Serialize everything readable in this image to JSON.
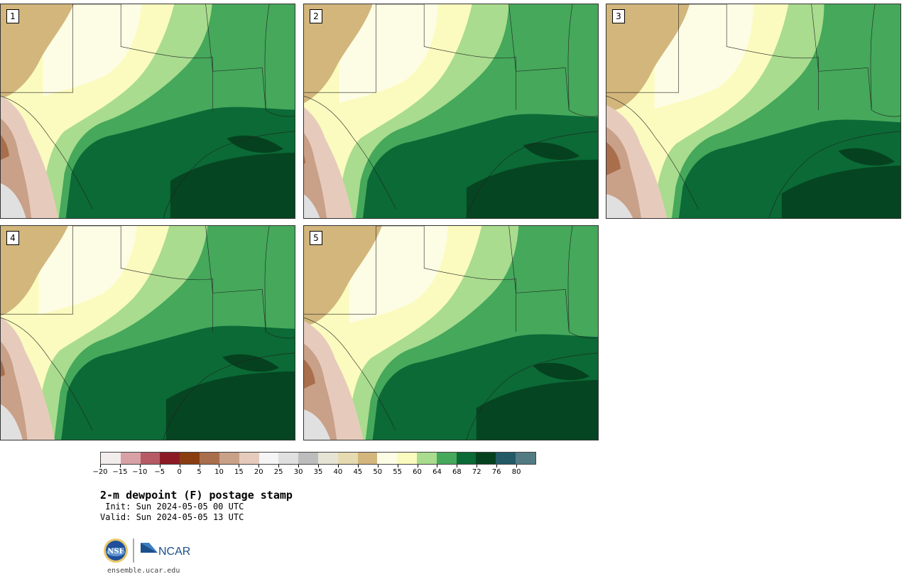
{
  "panels": [
    {
      "label": "1"
    },
    {
      "label": "2"
    },
    {
      "label": "3"
    },
    {
      "label": "4"
    },
    {
      "label": "5"
    }
  ],
  "colorbar": {
    "colors": [
      "#f3ecec",
      "#d7a1a6",
      "#b75a66",
      "#8c1a24",
      "#8b3d12",
      "#a96e4c",
      "#c9a088",
      "#e6cbbd",
      "#f5f5f5",
      "#e0e0e0",
      "#bdbdbd",
      "#e6e4d4",
      "#e6dab0",
      "#d2b67c",
      "#fdfde6",
      "#fbfbbf",
      "#a9dc8e",
      "#45a85b",
      "#0b6a36",
      "#05411f",
      "#225a66",
      "#527b83"
    ],
    "tick_labels": [
      "−20",
      "−15",
      "−10",
      "−5",
      "0",
      "5",
      "10",
      "15",
      "20",
      "25",
      "30",
      "35",
      "40",
      "45",
      "50",
      "55",
      "60",
      "64",
      "68",
      "72",
      "76",
      "80"
    ]
  },
  "title": "2-m dewpoint (F) postage stamp",
  "init_line": " Init: Sun 2024-05-05 00 UTC",
  "valid_line": "Valid: Sun 2024-05-05 13 UTC",
  "logos": {
    "nsf_text": "NSF",
    "ncar_text": "NCAR"
  },
  "url": "ensemble.ucar.edu"
}
